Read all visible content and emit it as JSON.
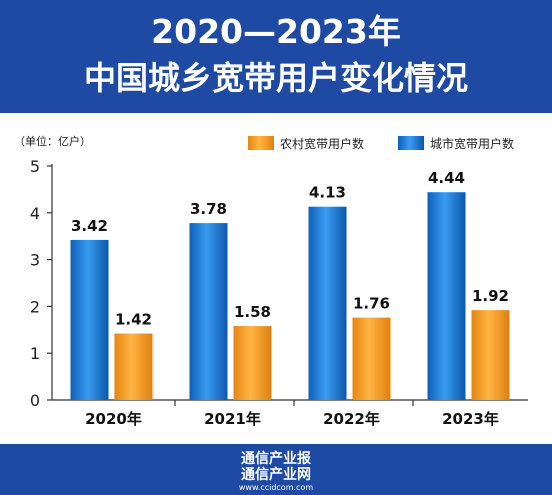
{
  "header": {
    "line1": "2020—2023年",
    "line2": "中国城乡宽带用户变化情况"
  },
  "footer": {
    "line1": "通信产业报",
    "line2": "通信产业网",
    "line3": "www.ccidcom.com"
  },
  "chart_data": {
    "type": "bar",
    "unit_label": "（单位：亿户）",
    "categories": [
      "2020年",
      "2021年",
      "2022年",
      "2023年"
    ],
    "series": [
      {
        "name": "城市宽带用户数",
        "values": [
          3.42,
          3.78,
          4.13,
          4.44
        ],
        "color": "#1f7fd4"
      },
      {
        "name": "农村宽带用户数",
        "values": [
          1.42,
          1.58,
          1.76,
          1.92
        ],
        "color": "#f39a1c"
      }
    ],
    "ylim": [
      0,
      5
    ],
    "yticks": [
      0,
      1,
      2,
      3,
      4,
      5
    ],
    "legend_order": [
      "农村宽带用户数",
      "城市宽带用户数"
    ],
    "legend_position": "top-right"
  }
}
